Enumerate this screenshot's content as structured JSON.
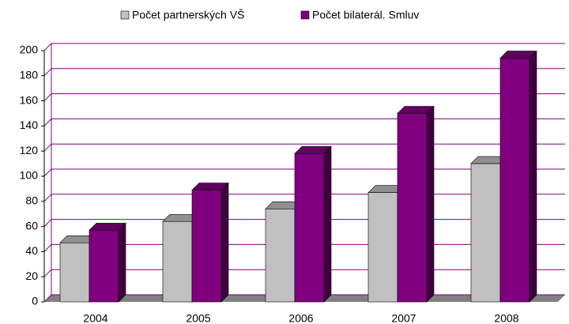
{
  "chart_data": {
    "type": "bar3d",
    "categories": [
      "2004",
      "2005",
      "2006",
      "2007",
      "2008"
    ],
    "series": [
      {
        "name": "Počet partnerských VŠ",
        "color": "#c0c0c0",
        "values": [
          47,
          64,
          74,
          87,
          110
        ]
      },
      {
        "name": "Počet bilaterál. Smluv",
        "color": "#800080",
        "values": [
          57,
          89,
          118,
          150,
          194
        ]
      }
    ],
    "ylim": [
      0,
      200
    ],
    "yticks": [
      0,
      20,
      40,
      60,
      80,
      100,
      120,
      140,
      160,
      180,
      200
    ],
    "grid": true,
    "grid_color": "#800080",
    "legend": "top"
  }
}
